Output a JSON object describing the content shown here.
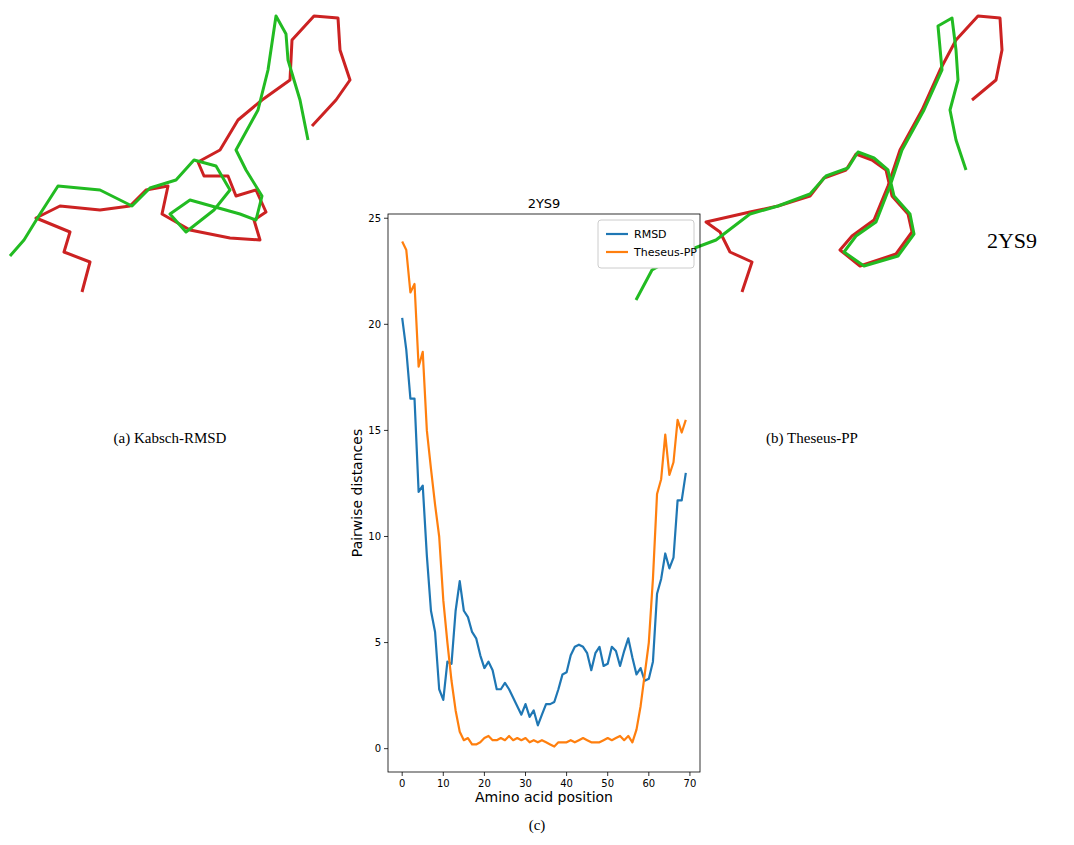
{
  "chart_data": {
    "type": "line",
    "title": "2YS9",
    "x_label": "Amino acid position",
    "y_label": "Pairwise distances",
    "x": [
      0,
      1,
      2,
      3,
      4,
      5,
      6,
      7,
      8,
      9,
      10,
      11,
      12,
      13,
      14,
      15,
      16,
      17,
      18,
      19,
      20,
      21,
      22,
      23,
      24,
      25,
      26,
      27,
      28,
      29,
      30,
      31,
      32,
      33,
      34,
      35,
      36,
      37,
      38,
      39,
      40,
      41,
      42,
      43,
      44,
      45,
      46,
      47,
      48,
      49,
      50,
      51,
      52,
      53,
      54,
      55,
      56,
      57,
      58,
      59,
      60,
      61,
      62,
      63,
      64,
      65,
      66,
      67,
      68,
      69
    ],
    "series": [
      {
        "name": "RMSD",
        "color": "#1f77b4",
        "values": [
          20.3,
          18.8,
          16.5,
          16.5,
          12.1,
          12.4,
          9.1,
          6.5,
          5.5,
          2.8,
          2.3,
          4.1,
          4.0,
          6.5,
          7.9,
          6.5,
          6.2,
          5.5,
          5.2,
          4.4,
          3.8,
          4.1,
          3.7,
          2.8,
          2.8,
          3.1,
          2.8,
          2.4,
          2.0,
          1.6,
          2.1,
          1.5,
          1.8,
          1.1,
          1.6,
          2.1,
          2.1,
          2.2,
          2.8,
          3.5,
          3.6,
          4.4,
          4.8,
          4.9,
          4.8,
          4.5,
          3.7,
          4.5,
          4.8,
          3.9,
          4.0,
          4.8,
          4.6,
          3.9,
          4.6,
          5.2,
          4.3,
          3.5,
          3.8,
          3.2,
          3.3,
          4.1,
          7.3,
          8.0,
          9.2,
          8.5,
          9.0,
          11.7,
          11.7,
          13.0
        ]
      },
      {
        "name": "Theseus-PP",
        "color": "#ff7f0e",
        "values": [
          23.9,
          23.5,
          21.5,
          21.9,
          18.0,
          18.7,
          15.0,
          13.2,
          11.5,
          10.0,
          7.0,
          5.0,
          3.2,
          1.8,
          0.8,
          0.4,
          0.5,
          0.2,
          0.2,
          0.3,
          0.5,
          0.6,
          0.4,
          0.4,
          0.5,
          0.4,
          0.6,
          0.4,
          0.5,
          0.4,
          0.5,
          0.3,
          0.4,
          0.3,
          0.4,
          0.3,
          0.2,
          0.1,
          0.3,
          0.3,
          0.3,
          0.4,
          0.3,
          0.4,
          0.5,
          0.4,
          0.3,
          0.3,
          0.3,
          0.4,
          0.5,
          0.4,
          0.5,
          0.6,
          0.4,
          0.6,
          0.3,
          0.9,
          2.0,
          3.5,
          5.0,
          8.0,
          12.0,
          12.7,
          14.8,
          12.9,
          13.5,
          15.5,
          14.9,
          15.5
        ]
      }
    ],
    "xlim": [
      -3.45,
      72.45
    ],
    "xticks": [
      0,
      10,
      20,
      30,
      40,
      50,
      60,
      70
    ],
    "ylim": [
      -1.1,
      25.2
    ],
    "yticks": [
      0,
      5,
      10,
      15,
      20,
      25
    ],
    "legend": "upper right",
    "grid": false
  },
  "figure": {
    "panel_a_caption": "(a) Kabsch-RMSD",
    "panel_b_caption": "(b) Theseus-PP",
    "structure_label": "2YS9",
    "panel_c_caption": "(c)"
  }
}
